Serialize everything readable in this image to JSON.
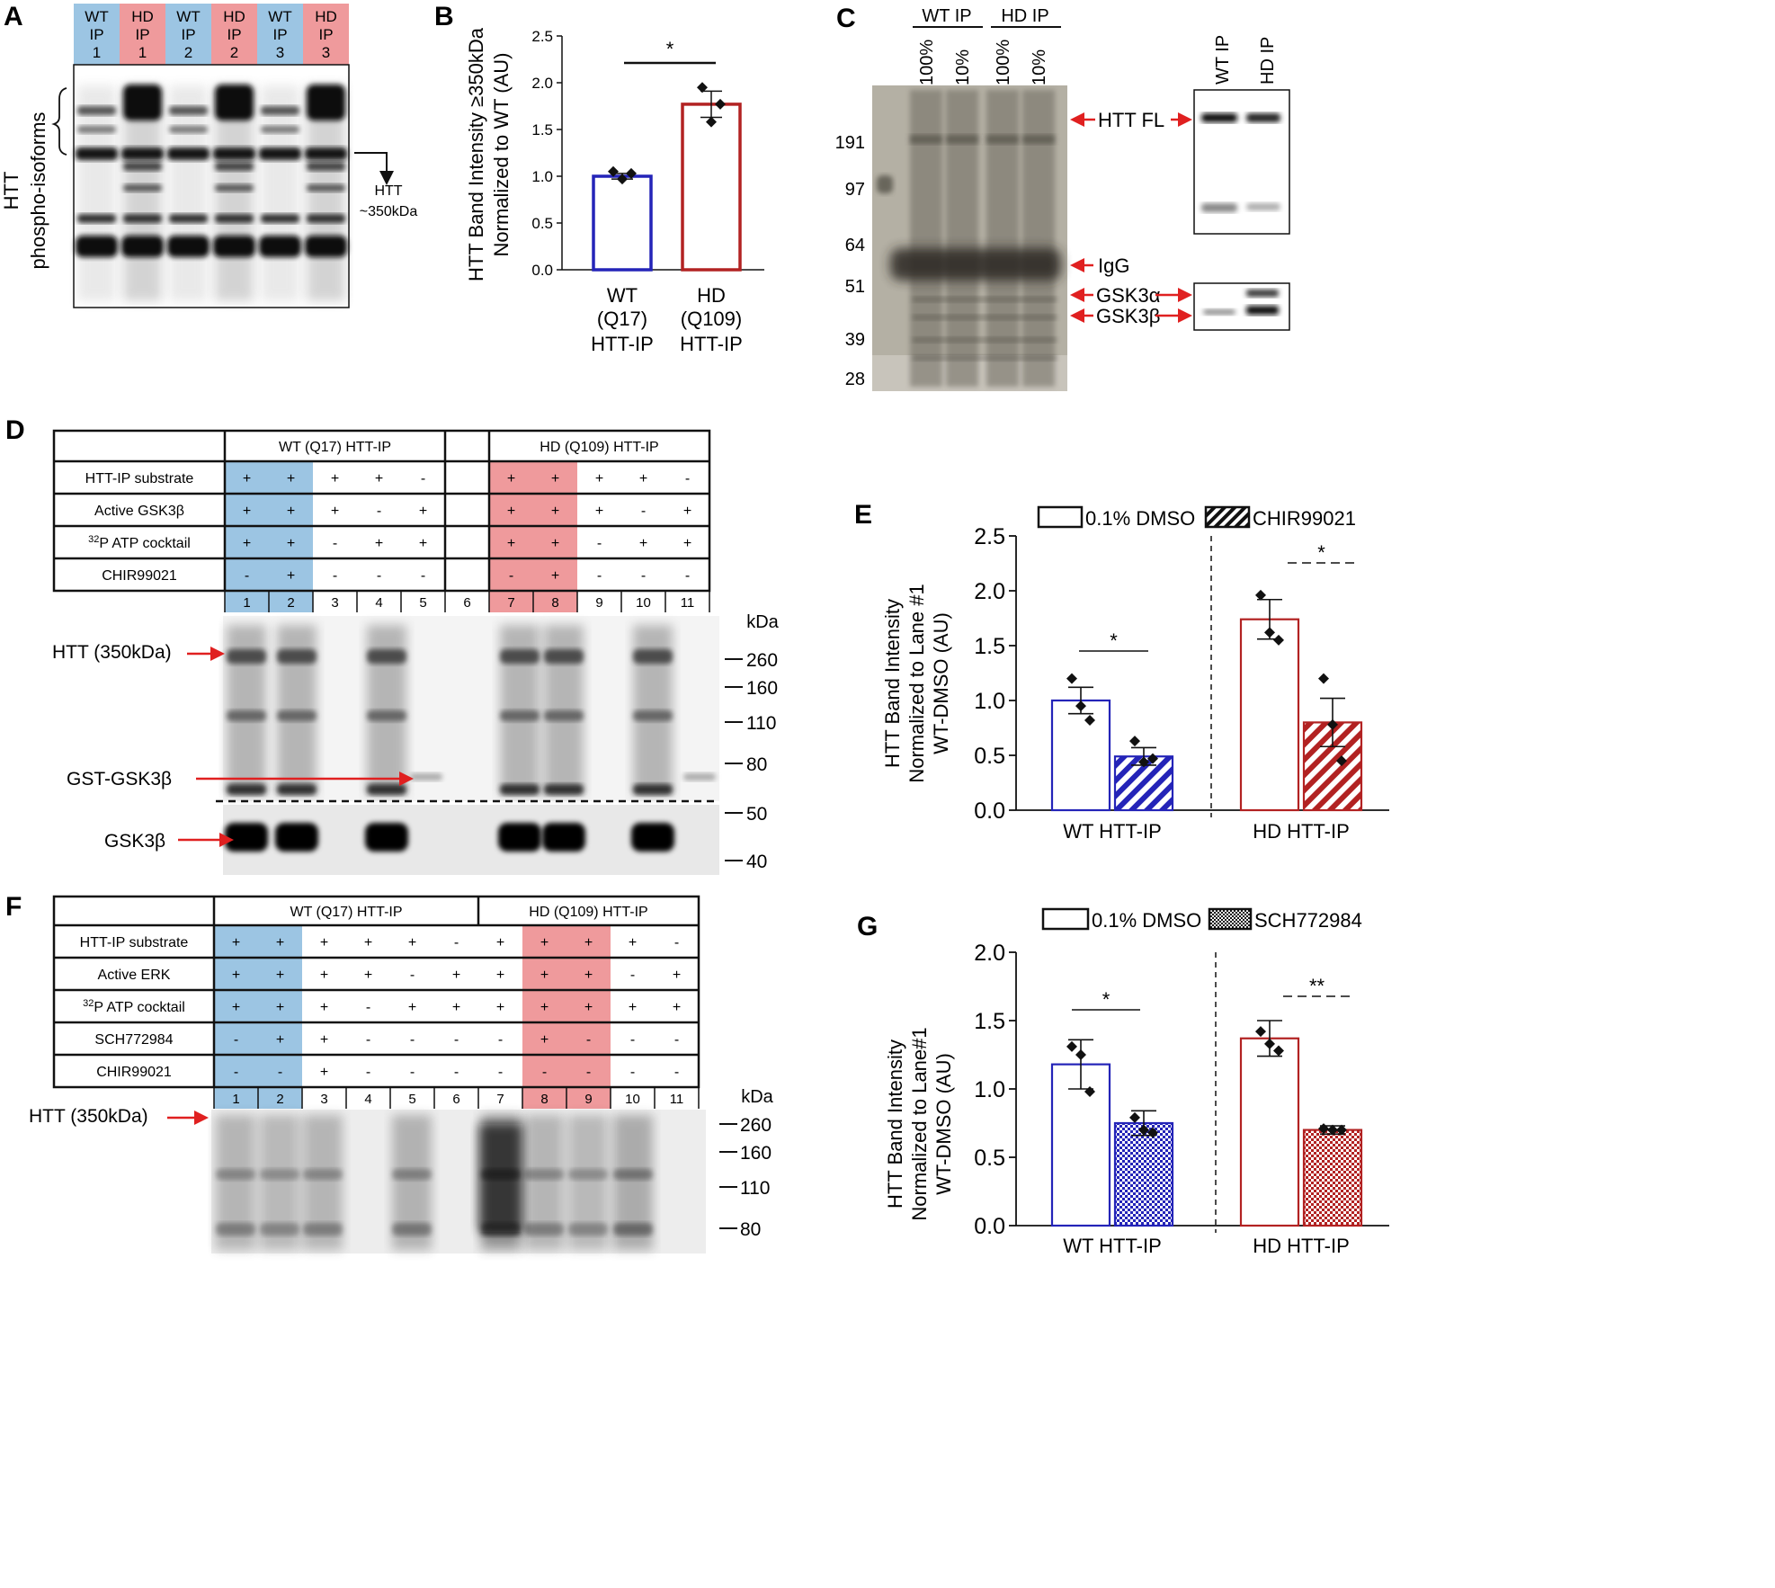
{
  "panel_labels": {
    "a": "A",
    "b": "B",
    "c": "C",
    "d": "D",
    "e": "E",
    "f": "F",
    "g": "G"
  },
  "colors": {
    "wt_blue": "#9cc5e3",
    "hd_pink": "#ef9a9c",
    "wt_bar": "#2424b8",
    "hd_bar": "#b22222",
    "arrow_red": "#e02020"
  },
  "panel_a": {
    "lanes": [
      {
        "line1": "WT",
        "line2": "IP",
        "line3": "1",
        "group": "wt"
      },
      {
        "line1": "HD",
        "line2": "IP",
        "line3": "1",
        "group": "hd"
      },
      {
        "line1": "WT",
        "line2": "IP",
        "line3": "2",
        "group": "wt"
      },
      {
        "line1": "HD",
        "line2": "IP",
        "line3": "2",
        "group": "hd"
      },
      {
        "line1": "WT",
        "line2": "IP",
        "line3": "3",
        "group": "wt"
      },
      {
        "line1": "HD",
        "line2": "IP",
        "line3": "3",
        "group": "hd"
      }
    ],
    "side_label_1": "HTT",
    "side_label_2": "phospho-isoforms",
    "band_label_1": "HTT",
    "band_label_2": "~350kDa"
  },
  "chart_data": [
    {
      "id": "B",
      "type": "bar",
      "ylabel_line1": "HTT Band Intensity ≥350kDa",
      "ylabel_line2": "Normalized to WT (AU)",
      "ylim": [
        0,
        2.5
      ],
      "yticks": [
        "0.0",
        "0.5",
        "1.0",
        "1.5",
        "2.0",
        "2.5"
      ],
      "categories": [
        {
          "line1": "WT",
          "line2": "(Q17)",
          "line3": "HTT-IP"
        },
        {
          "line1": "HD",
          "line2": "(Q109)",
          "line3": "HTT-IP"
        }
      ],
      "values": [
        1.0,
        1.77
      ],
      "sem": [
        0.03,
        0.14
      ],
      "points": [
        [
          1.05,
          0.97,
          1.03
        ],
        [
          1.95,
          1.58,
          1.77
        ]
      ],
      "significance": "*"
    },
    {
      "id": "E",
      "type": "bar",
      "ylabel_line1": "HTT Band Intensity",
      "ylabel_line2": "Normalized to Lane #1",
      "ylabel_line3": "WT-DMSO (AU)",
      "ylim": [
        0,
        2.5
      ],
      "yticks": [
        "0.0",
        "0.5",
        "1.0",
        "1.5",
        "2.0",
        "2.5"
      ],
      "legend": [
        "0.1% DMSO",
        "CHIR99021"
      ],
      "categories": [
        "WT HTT-IP",
        "HD HTT-IP"
      ],
      "series": [
        {
          "name": "0.1% DMSO",
          "values": [
            1.0,
            1.74
          ],
          "sem": [
            0.12,
            0.18
          ],
          "points": [
            [
              1.2,
              0.95,
              0.82
            ],
            [
              1.96,
              1.62,
              1.55
            ]
          ]
        },
        {
          "name": "CHIR99021",
          "values": [
            0.49,
            0.8
          ],
          "sem": [
            0.08,
            0.22
          ],
          "points": [
            [
              0.63,
              0.44,
              0.47
            ],
            [
              1.2,
              0.78,
              0.45
            ]
          ]
        }
      ],
      "significance": [
        "*",
        "*"
      ]
    },
    {
      "id": "G",
      "type": "bar",
      "ylabel_line1": "HTT Band Intensity",
      "ylabel_line2": "Normalized to Lane#1",
      "ylabel_line3": "WT-DMSO (AU)",
      "ylim": [
        0,
        2.0
      ],
      "yticks": [
        "0.0",
        "0.5",
        "1.0",
        "1.5",
        "2.0"
      ],
      "legend": [
        "0.1% DMSO",
        "SCH772984"
      ],
      "categories": [
        "WT HTT-IP",
        "HD HTT-IP"
      ],
      "series": [
        {
          "name": "0.1% DMSO",
          "values": [
            1.18,
            1.37
          ],
          "sem": [
            0.18,
            0.13
          ],
          "points": [
            [
              1.31,
              1.25,
              0.98
            ],
            [
              1.42,
              1.33,
              1.28
            ]
          ]
        },
        {
          "name": "SCH772984",
          "values": [
            0.75,
            0.7
          ],
          "sem": [
            0.09,
            0.03
          ],
          "points": [
            [
              0.79,
              0.7,
              0.68
            ],
            [
              0.71,
              0.7,
              0.7
            ]
          ]
        }
      ],
      "significance": [
        "*",
        "**"
      ]
    }
  ],
  "panel_c": {
    "gel_header_wt": "WT IP",
    "gel_header_hd": "HD IP",
    "gel_lanes": [
      "100%",
      "10%",
      "100%",
      "10%"
    ],
    "markers": [
      "191",
      "97",
      "64",
      "51",
      "39",
      "28"
    ],
    "blot_lanes": [
      "WT IP",
      "HD IP"
    ],
    "labels": {
      "htt_fl": "HTT FL",
      "igg": "IgG",
      "gsk3a": "GSK3α",
      "gsk3b": "GSK3β"
    }
  },
  "panel_d": {
    "group_wt": "WT (Q17) HTT-IP",
    "group_hd": "HD (Q109) HTT-IP",
    "rows": [
      {
        "label": "HTT-IP substrate",
        "values": [
          "+",
          "+",
          "+",
          "+",
          "-",
          "",
          "+",
          "+",
          "+",
          "+",
          "-"
        ]
      },
      {
        "label": "Active GSK3β",
        "values": [
          "+",
          "+",
          "+",
          "-",
          "+",
          "",
          "+",
          "+",
          "+",
          "-",
          "+"
        ]
      },
      {
        "label_sup": "32",
        "label": "P ATP cocktail",
        "values": [
          "+",
          "+",
          "-",
          "+",
          "+",
          "",
          "+",
          "+",
          "-",
          "+",
          "+"
        ]
      },
      {
        "label": "CHIR99021",
        "values": [
          "-",
          "+",
          "-",
          "-",
          "-",
          "",
          "-",
          "+",
          "-",
          "-",
          "-"
        ]
      }
    ],
    "lane_numbers": [
      "1",
      "2",
      "3",
      "4",
      "5",
      "6",
      "7",
      "8",
      "9",
      "10",
      "11"
    ],
    "kda_header": "kDa",
    "markers": [
      "260",
      "160",
      "110",
      "80",
      "50",
      "40"
    ],
    "arrows": {
      "htt": "HTT (350kDa)",
      "gst": "GST-GSK3β",
      "gsk": "GSK3β"
    }
  },
  "panel_f": {
    "group_wt": "WT (Q17) HTT-IP",
    "group_hd": "HD (Q109) HTT-IP",
    "rows": [
      {
        "label": "HTT-IP substrate",
        "values": [
          "+",
          "+",
          "+",
          "+",
          "+",
          "-",
          "+",
          "+",
          "+",
          "+",
          "-"
        ]
      },
      {
        "label": "Active ERK",
        "values": [
          "+",
          "+",
          "+",
          "+",
          "-",
          "+",
          "+",
          "+",
          "+",
          "-",
          "+"
        ]
      },
      {
        "label_sup": "32",
        "label": "P ATP cocktail",
        "values": [
          "+",
          "+",
          "+",
          "-",
          "+",
          "+",
          "+",
          "+",
          "+",
          "+",
          "+"
        ]
      },
      {
        "label": "SCH772984",
        "values": [
          "-",
          "+",
          "+",
          "-",
          "-",
          "-",
          "-",
          "+",
          "-",
          "-",
          "-"
        ]
      },
      {
        "label": "CHIR99021",
        "values": [
          "-",
          "-",
          "+",
          "-",
          "-",
          "-",
          "-",
          "-",
          "-",
          "-",
          "-"
        ]
      }
    ],
    "lane_numbers": [
      "1",
      "2",
      "3",
      "4",
      "5",
      "6",
      "7",
      "8",
      "9",
      "10",
      "11"
    ],
    "kda_header": "kDa",
    "markers": [
      "260",
      "160",
      "110",
      "80"
    ],
    "arrows": {
      "htt": "HTT (350kDa)"
    }
  }
}
